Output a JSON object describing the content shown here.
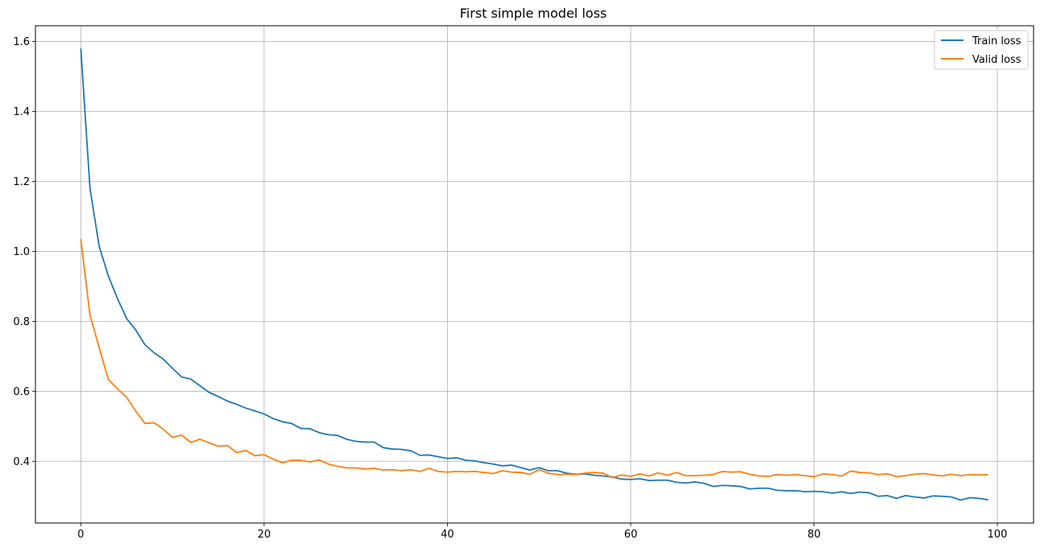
{
  "chart_data": {
    "type": "line",
    "title": "First simple model loss",
    "xlabel": "",
    "ylabel": "",
    "xlim": [
      -4.95,
      103.95
    ],
    "ylim": [
      0.2235,
      1.645
    ],
    "xticks": [
      0,
      20,
      40,
      60,
      80,
      100
    ],
    "yticks": [
      0.4,
      0.6,
      0.8,
      1.0,
      1.2,
      1.4,
      1.6
    ],
    "xtick_labels": [
      "0",
      "20",
      "40",
      "60",
      "80",
      "100"
    ],
    "ytick_labels": [
      "0.4",
      "0.6",
      "0.8",
      "1.0",
      "1.2",
      "1.4",
      "1.6"
    ],
    "grid": true,
    "legend_position": "top-right",
    "series": [
      {
        "name": "Train loss",
        "color": "#1f77b4",
        "values": [
          1.58,
          1.18,
          1.015,
          0.93,
          0.865,
          0.808,
          0.775,
          0.733,
          0.71,
          0.692,
          0.666,
          0.641,
          0.635,
          0.616,
          0.597,
          0.585,
          0.572,
          0.563,
          0.552,
          0.544,
          0.535,
          0.522,
          0.513,
          0.508,
          0.494,
          0.493,
          0.482,
          0.476,
          0.474,
          0.463,
          0.457,
          0.455,
          0.455,
          0.439,
          0.435,
          0.434,
          0.43,
          0.417,
          0.418,
          0.413,
          0.408,
          0.41,
          0.403,
          0.401,
          0.396,
          0.392,
          0.387,
          0.389,
          0.382,
          0.375,
          0.382,
          0.373,
          0.373,
          0.366,
          0.363,
          0.364,
          0.36,
          0.358,
          0.355,
          0.349,
          0.348,
          0.35,
          0.345,
          0.346,
          0.346,
          0.34,
          0.338,
          0.341,
          0.337,
          0.328,
          0.331,
          0.33,
          0.328,
          0.321,
          0.323,
          0.323,
          0.317,
          0.316,
          0.316,
          0.313,
          0.314,
          0.313,
          0.309,
          0.313,
          0.308,
          0.312,
          0.31,
          0.3,
          0.302,
          0.294,
          0.302,
          0.298,
          0.295,
          0.301,
          0.3,
          0.298,
          0.289,
          0.296,
          0.294,
          0.29
        ]
      },
      {
        "name": "Valid loss",
        "color": "#ff7f0e",
        "values": [
          1.035,
          0.818,
          0.725,
          0.634,
          0.607,
          0.583,
          0.543,
          0.508,
          0.51,
          0.492,
          0.468,
          0.475,
          0.454,
          0.463,
          0.453,
          0.443,
          0.445,
          0.425,
          0.431,
          0.416,
          0.419,
          0.406,
          0.396,
          0.403,
          0.403,
          0.398,
          0.404,
          0.392,
          0.386,
          0.381,
          0.381,
          0.378,
          0.38,
          0.375,
          0.376,
          0.373,
          0.376,
          0.371,
          0.38,
          0.371,
          0.369,
          0.371,
          0.37,
          0.371,
          0.368,
          0.365,
          0.373,
          0.369,
          0.368,
          0.363,
          0.376,
          0.366,
          0.362,
          0.363,
          0.362,
          0.366,
          0.368,
          0.366,
          0.353,
          0.361,
          0.357,
          0.364,
          0.358,
          0.367,
          0.36,
          0.368,
          0.359,
          0.359,
          0.36,
          0.362,
          0.371,
          0.369,
          0.37,
          0.363,
          0.358,
          0.357,
          0.362,
          0.36,
          0.362,
          0.359,
          0.356,
          0.364,
          0.362,
          0.358,
          0.372,
          0.368,
          0.367,
          0.362,
          0.364,
          0.356,
          0.359,
          0.363,
          0.365,
          0.361,
          0.358,
          0.363,
          0.359,
          0.362,
          0.361,
          0.362
        ]
      }
    ]
  }
}
